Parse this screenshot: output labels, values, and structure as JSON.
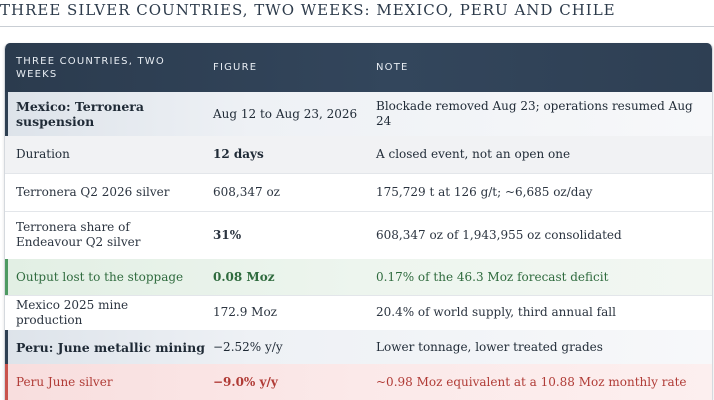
{
  "title": "THREE SILVER COUNTRIES, TWO WEEKS: MEXICO, PERU AND CHILE",
  "table": {
    "headers": [
      "THREE COUNTRIES, TWO WEEKS",
      "FIGURE",
      "NOTE"
    ],
    "rows": [
      {
        "label": "Mexico: Terronera suspension",
        "figure": "Aug 12 to Aug 23, 2026",
        "note": "Blockade removed Aug 23; operations resumed Aug 24",
        "style": "section"
      },
      {
        "label": "Duration",
        "figure": "12 days",
        "note": "A closed event, not an open one",
        "style": "grey"
      },
      {
        "label": "Terronera Q2 2026 silver",
        "figure": "608,347 oz",
        "note": "175,729 t at 126 g/t; ~6,685 oz/day",
        "style": "plain"
      },
      {
        "label": "Terronera share of Endeavour Q2 silver",
        "figure": "31%",
        "note": "608,347 oz of 1,943,955 oz consolidated",
        "style": "plain"
      },
      {
        "label": "Output lost to the stoppage",
        "figure": "0.08 Moz",
        "note": "0.17% of the 46.3 Moz forecast deficit",
        "style": "green"
      },
      {
        "label": "Mexico 2025 mine production",
        "figure": "172.9 Moz",
        "note": "20.4% of world supply, third annual fall",
        "style": "plain"
      },
      {
        "label": "Peru: June metallic mining",
        "figure": "−2.52% y/y",
        "note": "Lower tonnage, lower treated grades",
        "style": "section"
      },
      {
        "label": "Peru June silver",
        "figure": "−9.0% y/y",
        "note": "~0.98 Moz equivalent at a 10.88 Moz monthly rate",
        "style": "red"
      }
    ]
  }
}
